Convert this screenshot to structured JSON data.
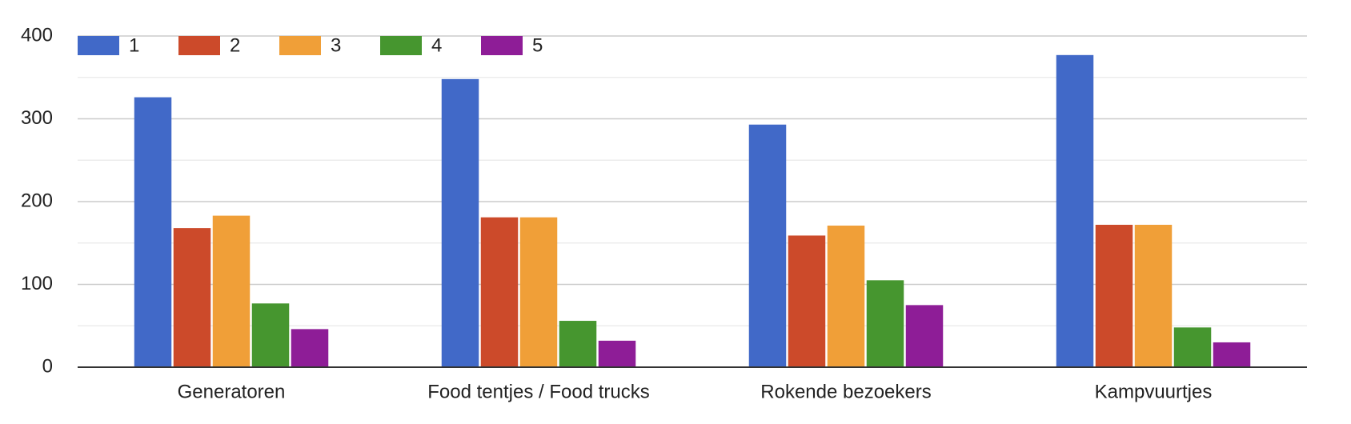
{
  "chart_data": {
    "type": "bar",
    "categories": [
      "Generatoren",
      "Food tentjes / Food trucks",
      "Rokende bezoekers",
      "Kampvuurtjes"
    ],
    "series": [
      {
        "name": "1",
        "color": "#4169c8",
        "values": [
          326,
          348,
          293,
          377
        ]
      },
      {
        "name": "2",
        "color": "#cc4a2a",
        "values": [
          168,
          181,
          159,
          172
        ]
      },
      {
        "name": "3",
        "color": "#f09f38",
        "values": [
          183,
          181,
          171,
          172
        ]
      },
      {
        "name": "4",
        "color": "#46962f",
        "values": [
          77,
          56,
          105,
          48
        ]
      },
      {
        "name": "5",
        "color": "#8e1d97",
        "values": [
          46,
          32,
          75,
          30
        ]
      }
    ],
    "ylim": [
      0,
      400
    ],
    "yticks": [
      0,
      100,
      200,
      300,
      400
    ],
    "minor_yticks": [
      50,
      150,
      250,
      350
    ],
    "grid": true,
    "legend": "top-left"
  }
}
